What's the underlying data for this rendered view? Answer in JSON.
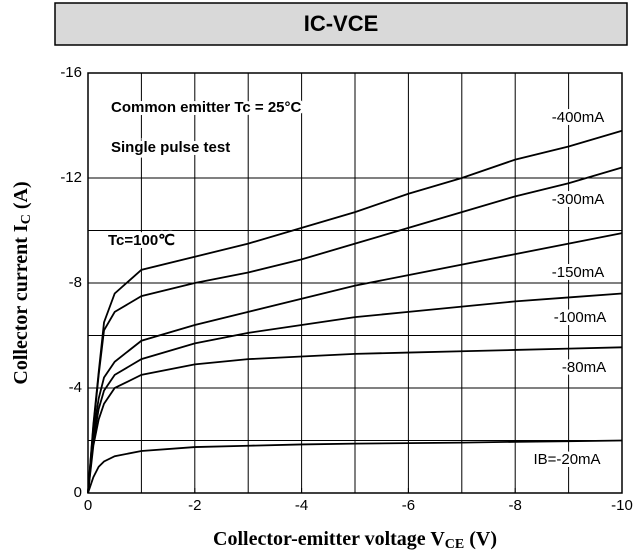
{
  "chart_data": {
    "type": "line",
    "title": "IC-VCE",
    "xlabel": [
      "Collector-emitter voltage V",
      "CE",
      " (V)"
    ],
    "ylabel": [
      "Collector current I",
      "C",
      " (A)"
    ],
    "annotations": [
      "Common emitter   Tc = 25°C",
      "Single pulse test",
      "Tc=100℃"
    ],
    "x": [
      0,
      -0.1,
      -0.2,
      -0.3,
      -0.5,
      -1,
      -2,
      -3,
      -4,
      -5,
      -6,
      -7,
      -8,
      -9,
      -10
    ],
    "series": [
      {
        "name": "-400mA",
        "color": "#000000",
        "values": [
          0,
          -2.6,
          -4.6,
          -6.5,
          -7.6,
          -8.5,
          -9.0,
          -9.5,
          -10.1,
          -10.7,
          -11.4,
          -12.0,
          -12.7,
          -13.2,
          -13.8
        ]
      },
      {
        "name": "-300mA",
        "color": "#000000",
        "values": [
          0,
          -2.5,
          -4.5,
          -6.2,
          -6.9,
          -7.5,
          -8.0,
          -8.4,
          -8.9,
          -9.5,
          -10.1,
          -10.7,
          -11.3,
          -11.8,
          -12.4
        ]
      },
      {
        "name": "-150mA",
        "color": "#000000",
        "values": [
          0,
          -2.3,
          -3.6,
          -4.4,
          -5.0,
          -5.8,
          -6.4,
          -6.9,
          -7.4,
          -7.9,
          -8.3,
          -8.7,
          -9.1,
          -9.5,
          -9.9
        ]
      },
      {
        "name": "-100mA",
        "color": "#000000",
        "values": [
          0,
          -2.0,
          -3.2,
          -3.9,
          -4.5,
          -5.1,
          -5.7,
          -6.1,
          -6.4,
          -6.7,
          -6.9,
          -7.1,
          -7.3,
          -7.45,
          -7.6
        ]
      },
      {
        "name": "-80mA",
        "color": "#000000",
        "values": [
          0,
          -1.8,
          -2.8,
          -3.4,
          -4.0,
          -4.5,
          -4.9,
          -5.1,
          -5.2,
          -5.3,
          -5.35,
          -5.4,
          -5.45,
          -5.5,
          -5.55
        ]
      },
      {
        "name": "IB=-20mA",
        "color": "#000000",
        "values": [
          0,
          -0.6,
          -1.0,
          -1.2,
          -1.4,
          -1.6,
          -1.75,
          -1.8,
          -1.85,
          -1.88,
          -1.9,
          -1.92,
          -1.95,
          -1.97,
          -2.0
        ]
      }
    ],
    "xlim": [
      0,
      -10
    ],
    "ylim": [
      0,
      -16
    ],
    "xticks": [
      0,
      -2,
      -4,
      -6,
      -8,
      -10
    ],
    "yticks": [
      -16,
      -12,
      -8,
      -4,
      0
    ],
    "xgrid": [
      -1,
      -2,
      -3,
      -4,
      -5,
      -6,
      -7,
      -8,
      -9
    ],
    "ygrid": [
      -2,
      -4,
      -6,
      -8,
      -10,
      -12
    ],
    "grid": true
  }
}
